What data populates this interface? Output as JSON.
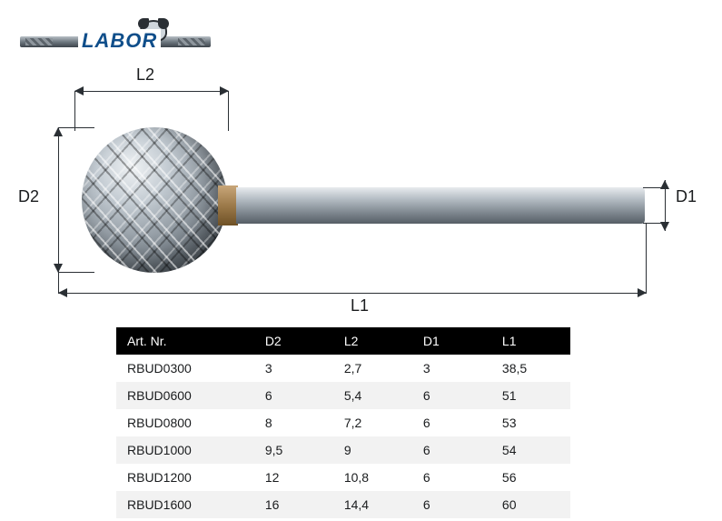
{
  "logo": {
    "text": "LABOR"
  },
  "diagram": {
    "labels": {
      "L1": "L1",
      "L2": "L2",
      "D1": "D1",
      "D2": "D2"
    }
  },
  "table": {
    "columns": [
      "Art. Nr.",
      "D2",
      "L2",
      "D1",
      "L1"
    ],
    "rows": [
      [
        "RBUD0300",
        "3",
        "2,7",
        "3",
        "38,5"
      ],
      [
        "RBUD0600",
        "6",
        "5,4",
        "6",
        "51"
      ],
      [
        "RBUD0800",
        "8",
        "7,2",
        "6",
        "53"
      ],
      [
        "RBUD1000",
        "9,5",
        "9",
        "6",
        "54"
      ],
      [
        "RBUD1200",
        "12",
        "10,8",
        "6",
        "56"
      ],
      [
        "RBUD1600",
        "16",
        "14,4",
        "6",
        "60"
      ]
    ]
  },
  "colors": {
    "header_bg": "#000000",
    "header_fg": "#ffffff",
    "row_alt": "#f2f2f2",
    "text": "#1a1c1e",
    "logo_blue": "#0f4e8a"
  }
}
